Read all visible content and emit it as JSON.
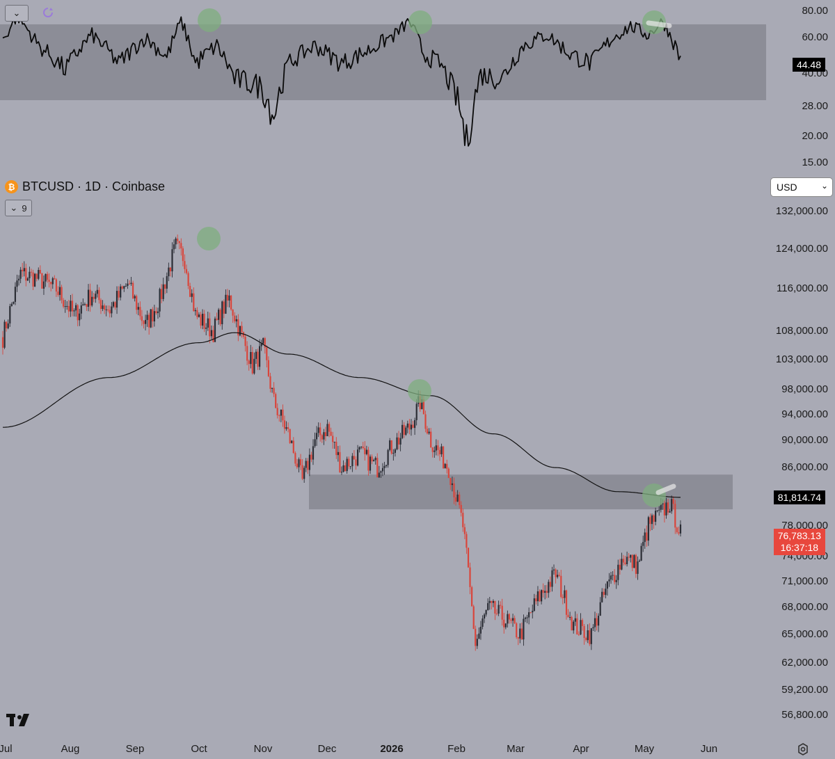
{
  "header": {
    "symbol": "BTCUSD · 1D · Coinbase",
    "coin_glyph": "₿",
    "indicator_count": "9",
    "currency": "USD",
    "dropdown_glyph": "⌄"
  },
  "rsi_panel": {
    "ticks": [
      "80.00",
      "60.00",
      "40.00",
      "28.00",
      "20.00",
      "15.00"
    ],
    "current_value": "44.48",
    "band_high": 70,
    "band_low": 30
  },
  "price_panel": {
    "ticks": [
      "132,000.00",
      "124,000.00",
      "116,000.00",
      "108,000.00",
      "103,000.00",
      "98,000.00",
      "94,000.00",
      "90,000.00",
      "86,000.00",
      "78,000.00",
      "74,000.00",
      "71,000.00",
      "68,000.00",
      "65,000.00",
      "62,000.00",
      "59,200.00",
      "56,800.00"
    ],
    "ma_value": "81,814.74",
    "last_price": "76,783.13",
    "countdown": "16:37:18",
    "zone_high": 85000,
    "zone_low": 80200
  },
  "x_axis": {
    "months": [
      "Jul",
      "Aug",
      "Sep",
      "Oct",
      "Nov",
      "Dec",
      "2026",
      "Feb",
      "Mar",
      "Apr",
      "May",
      "Jun"
    ]
  },
  "colors": {
    "background": "#a9aab5",
    "up_candle": "#2b2d35",
    "down_candle": "#d9453b",
    "zone": "#8c8d97",
    "highlight": "#7fae7f",
    "last_price_tag": "#e8473d",
    "ma_tag": "#000000"
  },
  "chart_data": [
    {
      "type": "line",
      "name": "",
      "x": [
        "Jul",
        "Aug",
        "Sep",
        "Oct",
        "Nov",
        "Dec",
        "2026",
        "Feb",
        "Mar",
        "Apr",
        "May"
      ],
      "y": [
        58,
        52,
        50,
        68,
        45,
        48,
        72,
        36,
        50,
        52,
        70
      ],
      "last": 44.48,
      "ylim": [
        15,
        80
      ],
      "log_scale": true,
      "highlights": [
        "Oct",
        "2026",
        "May"
      ]
    },
    {
      "type": "candlestick",
      "name": "",
      "x": [
        "Jul",
        "Aug",
        "Sep",
        "Oct",
        "Nov",
        "Dec",
        "2026",
        "Feb",
        "Mar",
        "Apr",
        "May"
      ],
      "close": [
        107500,
        118500,
        111500,
        124000,
        109000,
        88000,
        91000,
        78000,
        66000,
        74000,
        79000
      ],
      "last": 76783.13,
      "moving_average": [
        92000,
        96000,
        101000,
        106000,
        107500,
        102500,
        97500,
        89000,
        84000,
        82500,
        81814.74
      ],
      "ylim": [
        55000,
        140000
      ],
      "log_scale": true,
      "highlights": [
        "Oct",
        "2026",
        "May"
      ]
    }
  ]
}
